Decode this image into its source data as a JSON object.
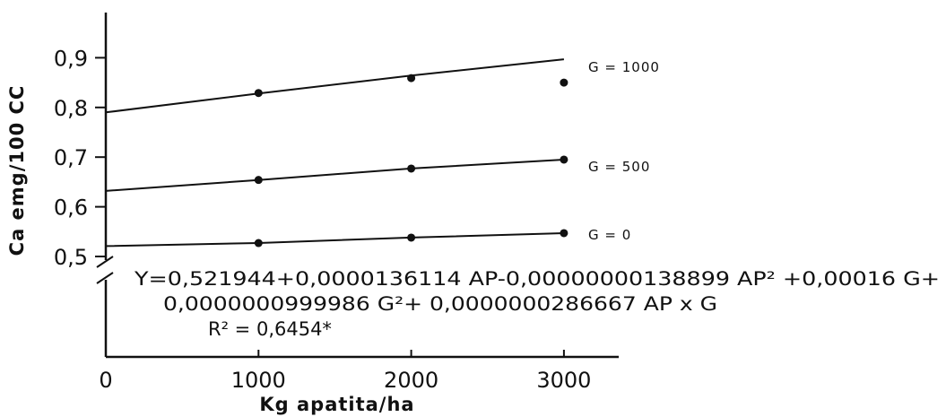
{
  "chart_data": {
    "type": "line",
    "xlabel": "Kg apatita/ha",
    "ylabel": "Ca emg/100 CC",
    "x_ticks": [
      "0",
      "1000",
      "2000",
      "3000"
    ],
    "y_ticks": [
      "0,5",
      "0,6",
      "0,7",
      "0,8",
      "0,9"
    ],
    "x_tick_values": [
      0,
      1000,
      2000,
      3000
    ],
    "y_tick_values": [
      0.5,
      0.6,
      0.7,
      0.8,
      0.9
    ],
    "xlim": [
      0,
      3300
    ],
    "ylim": [
      0.5,
      0.9
    ],
    "axis_break": true,
    "grid": false,
    "series": [
      {
        "name": "G = 0",
        "line": [
          [
            0,
            0.521
          ],
          [
            1000,
            0.527
          ],
          [
            2000,
            0.538
          ],
          [
            3000,
            0.547
          ]
        ],
        "points": [
          [
            1000,
            0.527
          ],
          [
            2000,
            0.538
          ],
          [
            3000,
            0.547
          ]
        ]
      },
      {
        "name": "G = 500",
        "line": [
          [
            0,
            0.632
          ],
          [
            1000,
            0.654
          ],
          [
            2000,
            0.677
          ],
          [
            3000,
            0.695
          ]
        ],
        "points": [
          [
            1000,
            0.654
          ],
          [
            2000,
            0.677
          ],
          [
            3000,
            0.695
          ]
        ]
      },
      {
        "name": "G = 1000",
        "line": [
          [
            0,
            0.79
          ],
          [
            1000,
            0.828
          ],
          [
            2000,
            0.864
          ],
          [
            3000,
            0.897
          ]
        ],
        "points": [
          [
            1000,
            0.829
          ],
          [
            2000,
            0.859
          ],
          [
            3000,
            0.85
          ]
        ]
      }
    ],
    "annotations": {
      "equation_line1": "Y=0,521944+0,0000136114 AP-0,00000000138899 AP² +0,00016 G+",
      "equation_line2": "0,0000000999986 G²+ 0,0000000286667 AP x G",
      "r_squared": "R² = 0,6454*"
    }
  }
}
